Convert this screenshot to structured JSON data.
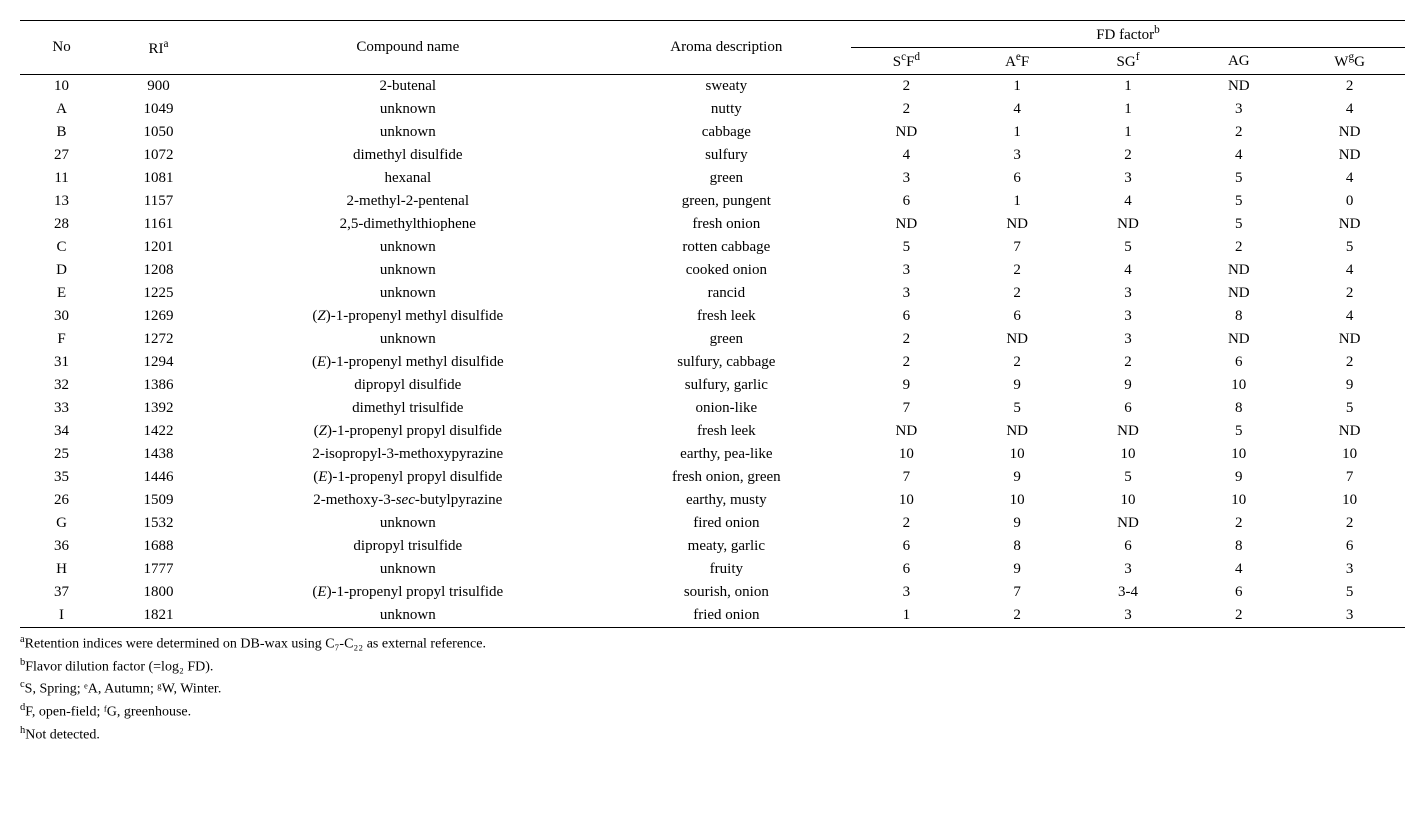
{
  "header": {
    "no": "No",
    "ri": "RI",
    "ri_sup": "a",
    "compound": "Compound name",
    "aroma": "Aroma description",
    "fd": "FD factor",
    "fd_sup": "b",
    "sf": "S",
    "sf_sup1": "c",
    "sf_mid": "F",
    "sf_sup2": "d",
    "af": "A",
    "af_sup": "e",
    "af_tail": "F",
    "sg": "SG",
    "sg_sup": "f",
    "ag": "AG",
    "wg": "W",
    "wg_sup": "g",
    "wg_tail": "G"
  },
  "rows": [
    {
      "no": "10",
      "ri": "900",
      "compound": "2-butenal",
      "aroma": "sweaty",
      "sf": "2",
      "af": "1",
      "sg": "1",
      "ag": "ND",
      "wg": "2"
    },
    {
      "no": "A",
      "ri": "1049",
      "compound": "unknown",
      "aroma": "nutty",
      "sf": "2",
      "af": "4",
      "sg": "1",
      "ag": "3",
      "wg": "4"
    },
    {
      "no": "B",
      "ri": "1050",
      "compound": "unknown",
      "aroma": "cabbage",
      "sf": "ND",
      "af": "1",
      "sg": "1",
      "ag": "2",
      "wg": "ND"
    },
    {
      "no": "27",
      "ri": "1072",
      "compound": "dimethyl disulfide",
      "aroma": "sulfury",
      "sf": "4",
      "af": "3",
      "sg": "2",
      "ag": "4",
      "wg": "ND"
    },
    {
      "no": "11",
      "ri": "1081",
      "compound": "hexanal",
      "aroma": "green",
      "sf": "3",
      "af": "6",
      "sg": "3",
      "ag": "5",
      "wg": "4"
    },
    {
      "no": "13",
      "ri": "1157",
      "compound": "2-methyl-2-pentenal",
      "aroma": "green, pungent",
      "sf": "6",
      "af": "1",
      "sg": "4",
      "ag": "5",
      "wg": "0"
    },
    {
      "no": "28",
      "ri": "1161",
      "compound": "2,5-dimethylthiophene",
      "aroma": "fresh onion",
      "sf": "ND",
      "af": "ND",
      "sg": "ND",
      "ag": "5",
      "wg": "ND"
    },
    {
      "no": "C",
      "ri": "1201",
      "compound": "unknown",
      "aroma": "rotten cabbage",
      "sf": "5",
      "af": "7",
      "sg": "5",
      "ag": "2",
      "wg": "5"
    },
    {
      "no": "D",
      "ri": "1208",
      "compound": "unknown",
      "aroma": "cooked onion",
      "sf": "3",
      "af": "2",
      "sg": "4",
      "ag": "ND",
      "wg": "4"
    },
    {
      "no": "E",
      "ri": "1225",
      "compound": "unknown",
      "aroma": "rancid",
      "sf": "3",
      "af": "2",
      "sg": "3",
      "ag": "ND",
      "wg": "2"
    },
    {
      "no": "30",
      "ri": "1269",
      "compound": "(<span class=\"italic\">Z</span>)-1-propenyl methyl disulfide",
      "aroma": "fresh leek",
      "sf": "6",
      "af": "6",
      "sg": "3",
      "ag": "8",
      "wg": "4"
    },
    {
      "no": "F",
      "ri": "1272",
      "compound": "unknown",
      "aroma": "green",
      "sf": "2",
      "af": "ND",
      "sg": "3",
      "ag": "ND",
      "wg": "ND"
    },
    {
      "no": "31",
      "ri": "1294",
      "compound": "(<span class=\"italic\">E</span>)-1-propenyl methyl disulfide",
      "aroma": "sulfury, cabbage",
      "sf": "2",
      "af": "2",
      "sg": "2",
      "ag": "6",
      "wg": "2"
    },
    {
      "no": "32",
      "ri": "1386",
      "compound": "dipropyl disulfide",
      "aroma": "sulfury, garlic",
      "sf": "9",
      "af": "9",
      "sg": "9",
      "ag": "10",
      "wg": "9"
    },
    {
      "no": "33",
      "ri": "1392",
      "compound": "dimethyl trisulfide",
      "aroma": "onion-like",
      "sf": "7",
      "af": "5",
      "sg": "6",
      "ag": "8",
      "wg": "5"
    },
    {
      "no": "34",
      "ri": "1422",
      "compound": "(<span class=\"italic\">Z</span>)-1-propenyl propyl disulfide",
      "aroma": "fresh leek",
      "sf": "ND",
      "af": "ND",
      "sg": "ND",
      "ag": "5",
      "wg": "ND"
    },
    {
      "no": "25",
      "ri": "1438",
      "compound": "2-isopropyl-3-methoxypyrazine",
      "aroma": "earthy, pea-like",
      "sf": "10",
      "af": "10",
      "sg": "10",
      "ag": "10",
      "wg": "10"
    },
    {
      "no": "35",
      "ri": "1446",
      "compound": "(<span class=\"italic\">E</span>)-1-propenyl propyl disulfide",
      "aroma": "fresh onion, green",
      "sf": "7",
      "af": "9",
      "sg": "5",
      "ag": "9",
      "wg": "7"
    },
    {
      "no": "26",
      "ri": "1509",
      "compound": "2-methoxy-3-<span class=\"italic\">sec</span>-butylpyrazine",
      "aroma": "earthy, musty",
      "sf": "10",
      "af": "10",
      "sg": "10",
      "ag": "10",
      "wg": "10"
    },
    {
      "no": "G",
      "ri": "1532",
      "compound": "unknown",
      "aroma": "fired onion",
      "sf": "2",
      "af": "9",
      "sg": "ND",
      "ag": "2",
      "wg": "2"
    },
    {
      "no": "36",
      "ri": "1688",
      "compound": "dipropyl trisulfide",
      "aroma": "meaty, garlic",
      "sf": "6",
      "af": "8",
      "sg": "6",
      "ag": "8",
      "wg": "6"
    },
    {
      "no": "H",
      "ri": "1777",
      "compound": "unknown",
      "aroma": "fruity",
      "sf": "6",
      "af": "9",
      "sg": "3",
      "ag": "4",
      "wg": "3"
    },
    {
      "no": "37",
      "ri": "1800",
      "compound": "(<span class=\"italic\">E</span>)-1-propenyl propyl trisulfide",
      "aroma": "sourish, onion",
      "sf": "3",
      "af": "7",
      "sg": "3-4",
      "ag": "6",
      "wg": "5"
    },
    {
      "no": "I",
      "ri": "1821",
      "compound": "unknown",
      "aroma": "fried onion",
      "sf": "1",
      "af": "2",
      "sg": "3",
      "ag": "2",
      "wg": "3"
    }
  ],
  "footnotes": {
    "a": "Retention indices were determined on DB-wax using C₇-C₂₂ as external reference.",
    "b": "Flavor dilution factor (=log₂ FD).",
    "c": "S, Spring;  ᵉA, Autumn;  ᵍW, Winter.",
    "d": "F, open-field;   ᶠG, greenhouse.",
    "h": "Not detected."
  },
  "col_widths": {
    "no": "6%",
    "ri": "8%",
    "compound": "28%",
    "aroma": "18%",
    "fd": "8%"
  }
}
